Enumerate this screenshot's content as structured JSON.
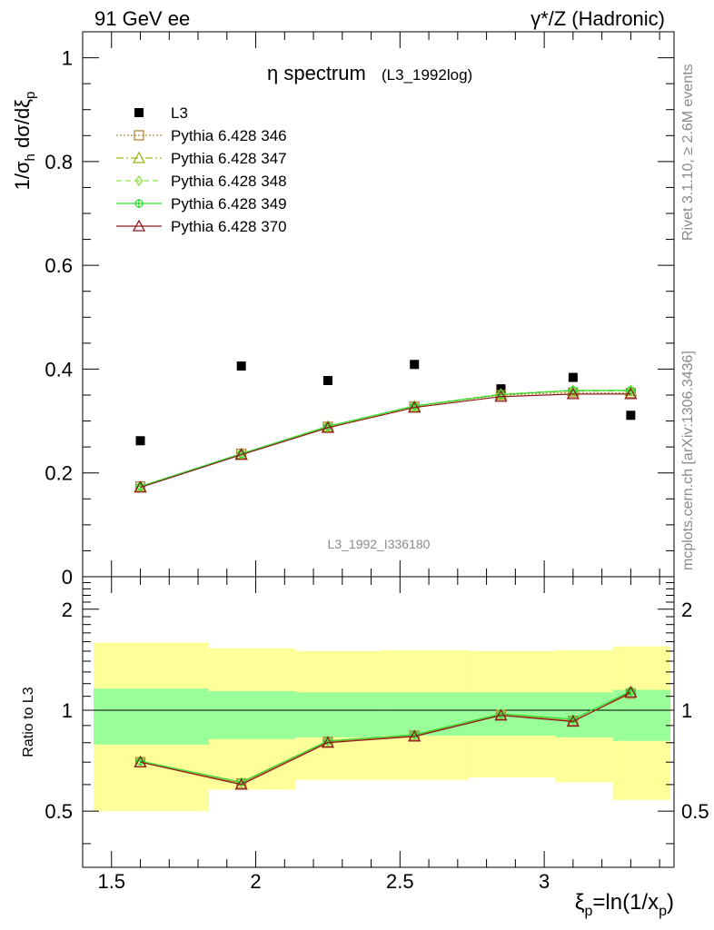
{
  "header": {
    "left": "91 GeV ee",
    "right": "γ*/Z (Hadronic)"
  },
  "side_text": {
    "rivet": "Rivet 3.1.10, ≥ 2.6M events",
    "mcplots": "mcplots.cern.ch [arXiv:1306.3436]"
  },
  "chart_data": [
    {
      "type": "scatter",
      "title": "η spectrum",
      "title_suffix": "(L3_1992log)",
      "ylabel": "1/σ_h dσ/dξ_p",
      "watermark": "L3_1992_I336180",
      "ylim": [
        0,
        1.05
      ],
      "xlim": [
        1.4,
        3.45
      ],
      "yticks": [
        0,
        0.2,
        0.4,
        0.6,
        0.8,
        1
      ],
      "ytick_labels": [
        "0",
        "0.2",
        "0.4",
        "0.6",
        "0.8",
        "1"
      ],
      "x": [
        1.6,
        1.95,
        2.25,
        2.55,
        2.85,
        3.1,
        3.3
      ],
      "series": [
        {
          "name": "L3",
          "color": "#000000",
          "marker": "square-filled",
          "values": [
            0.262,
            0.406,
            0.378,
            0.409,
            0.362,
            0.384,
            0.311
          ]
        },
        {
          "name": "Pythia 6.428 346",
          "color": "#b8863b",
          "marker": "square-open",
          "line": "dotted",
          "values": [
            0.174,
            0.237,
            0.289,
            0.328,
            0.35,
            0.355,
            0.354
          ]
        },
        {
          "name": "Pythia 6.428 347",
          "color": "#9aba1e",
          "marker": "triangle-open",
          "line": "dashdot",
          "values": [
            0.173,
            0.236,
            0.289,
            0.328,
            0.351,
            0.358,
            0.358
          ]
        },
        {
          "name": "Pythia 6.428 348",
          "color": "#90e040",
          "marker": "diamond-open",
          "line": "dashed",
          "values": [
            0.173,
            0.236,
            0.289,
            0.329,
            0.352,
            0.359,
            0.359
          ]
        },
        {
          "name": "Pythia 6.428 349",
          "color": "#33dd33",
          "marker": "circle-cross",
          "line": "solid",
          "values": [
            0.174,
            0.237,
            0.29,
            0.329,
            0.351,
            0.359,
            0.359
          ]
        },
        {
          "name": "Pythia 6.428 370",
          "color": "#8b1a1a",
          "marker": "triangle-open",
          "line": "solid",
          "values": [
            0.172,
            0.235,
            0.287,
            0.326,
            0.347,
            0.352,
            0.352
          ]
        }
      ],
      "legend_position": "top-left"
    },
    {
      "type": "line",
      "ylabel": "Ratio to L3",
      "xlabel": "ξ_p=ln(1/x_p)",
      "ylim": [
        0.34,
        2.5
      ],
      "xlim": [
        1.4,
        3.45
      ],
      "yticks": [
        0.5,
        1,
        2
      ],
      "ytick_labels": [
        "0.5",
        "1",
        "2"
      ],
      "xticks": [
        1.5,
        2,
        2.5,
        3
      ],
      "xtick_labels": [
        "1.5",
        "2",
        "2.5",
        "3"
      ],
      "bins": [
        {
          "x0": 1.4,
          "x1": 1.8,
          "yellow": [
            0.5,
            1.59
          ],
          "green": [
            0.79,
            1.16
          ]
        },
        {
          "x0": 1.8,
          "x1": 2.1,
          "yellow": [
            0.58,
            1.53
          ],
          "green": [
            0.82,
            1.14
          ]
        },
        {
          "x0": 2.1,
          "x1": 2.4,
          "yellow": [
            0.62,
            1.5
          ],
          "green": [
            0.83,
            1.13
          ]
        },
        {
          "x0": 2.4,
          "x1": 2.7,
          "yellow": [
            0.62,
            1.51
          ],
          "green": [
            0.84,
            1.13
          ]
        },
        {
          "x0": 2.7,
          "x1": 3.0,
          "yellow": [
            0.63,
            1.5
          ],
          "green": [
            0.84,
            1.13
          ]
        },
        {
          "x0": 3.0,
          "x1": 3.2,
          "yellow": [
            0.61,
            1.51
          ],
          "green": [
            0.83,
            1.13
          ]
        },
        {
          "x0": 3.2,
          "x1": 3.4,
          "yellow": [
            0.54,
            1.55
          ],
          "green": [
            0.81,
            1.15
          ]
        }
      ],
      "x": [
        1.6,
        1.95,
        2.25,
        2.55,
        2.85,
        3.1,
        3.3
      ],
      "series": [
        {
          "name": "Pythia 6.428 346",
          "color": "#b8863b",
          "marker": "square-open",
          "values": [
            0.7,
            0.605,
            0.805,
            0.84,
            0.97,
            0.93,
            1.12
          ]
        },
        {
          "name": "Pythia 6.428 349",
          "color": "#33dd33",
          "marker": "circle-cross",
          "values": [
            0.705,
            0.61,
            0.81,
            0.845,
            0.975,
            0.94,
            1.14
          ]
        },
        {
          "name": "Pythia 6.428 370",
          "color": "#8b1a1a",
          "marker": "triangle-open",
          "values": [
            0.7,
            0.6,
            0.8,
            0.835,
            0.965,
            0.925,
            1.13
          ]
        }
      ]
    }
  ]
}
